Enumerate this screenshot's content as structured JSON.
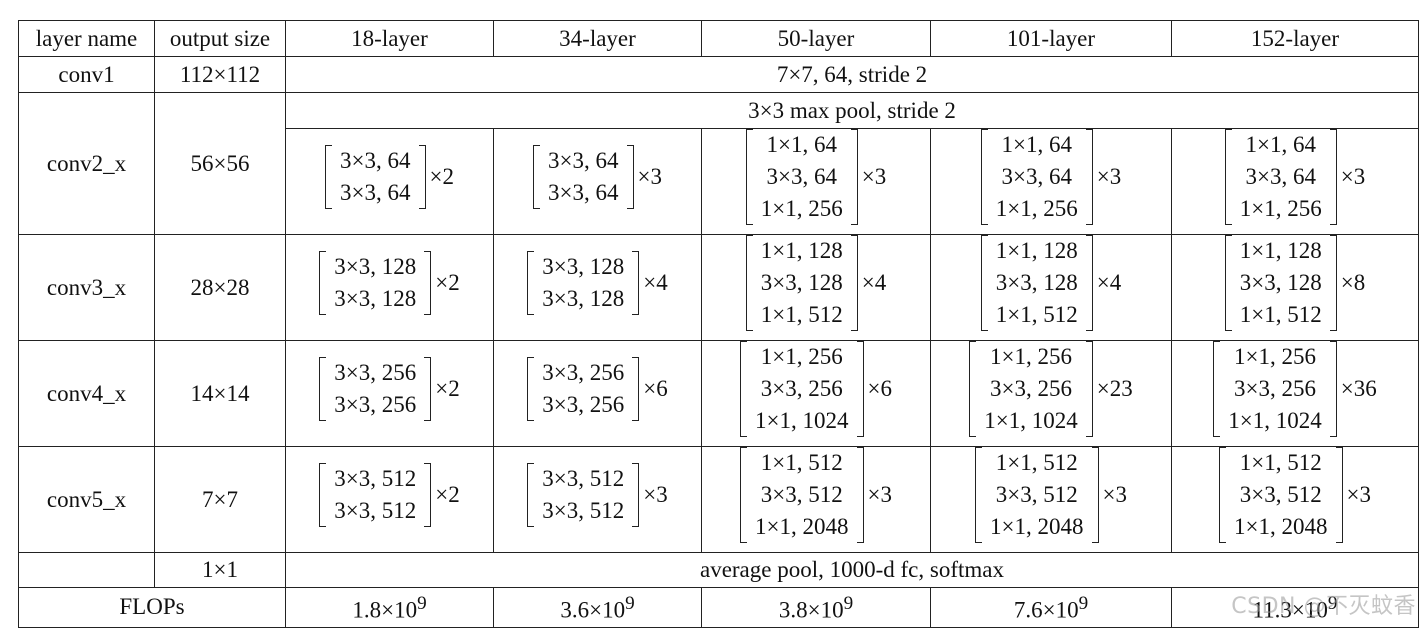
{
  "headers": [
    "layer name",
    "output size",
    "18-layer",
    "34-layer",
    "50-layer",
    "101-layer",
    "152-layer"
  ],
  "conv1": {
    "name": "conv1",
    "size": "112×112",
    "desc": "7×7, 64, stride 2"
  },
  "maxpool": {
    "desc": "3×3 max pool, stride 2"
  },
  "blocks": [
    {
      "name": "conv2_x",
      "size": "56×56",
      "cells": [
        {
          "lines": [
            "3×3, 64",
            "3×3, 64"
          ],
          "mult": "×2"
        },
        {
          "lines": [
            "3×3, 64",
            "3×3, 64"
          ],
          "mult": "×3"
        },
        {
          "lines": [
            "1×1, 64",
            "3×3, 64",
            "1×1, 256"
          ],
          "mult": "×3"
        },
        {
          "lines": [
            "1×1, 64",
            "3×3, 64",
            "1×1, 256"
          ],
          "mult": "×3"
        },
        {
          "lines": [
            "1×1, 64",
            "3×3, 64",
            "1×1, 256"
          ],
          "mult": "×3"
        }
      ]
    },
    {
      "name": "conv3_x",
      "size": "28×28",
      "cells": [
        {
          "lines": [
            "3×3, 128",
            "3×3, 128"
          ],
          "mult": "×2"
        },
        {
          "lines": [
            "3×3, 128",
            "3×3, 128"
          ],
          "mult": "×4"
        },
        {
          "lines": [
            "1×1, 128",
            "3×3, 128",
            "1×1, 512"
          ],
          "mult": "×4"
        },
        {
          "lines": [
            "1×1, 128",
            "3×3, 128",
            "1×1, 512"
          ],
          "mult": "×4"
        },
        {
          "lines": [
            "1×1, 128",
            "3×3, 128",
            "1×1, 512"
          ],
          "mult": "×8"
        }
      ]
    },
    {
      "name": "conv4_x",
      "size": "14×14",
      "cells": [
        {
          "lines": [
            "3×3, 256",
            "3×3, 256"
          ],
          "mult": "×2"
        },
        {
          "lines": [
            "3×3, 256",
            "3×3, 256"
          ],
          "mult": "×6"
        },
        {
          "lines": [
            "1×1, 256",
            "3×3, 256",
            "1×1, 1024"
          ],
          "mult": "×6"
        },
        {
          "lines": [
            "1×1, 256",
            "3×3, 256",
            "1×1, 1024"
          ],
          "mult": "×23"
        },
        {
          "lines": [
            "1×1, 256",
            "3×3, 256",
            "1×1, 1024"
          ],
          "mult": "×36"
        }
      ]
    },
    {
      "name": "conv5_x",
      "size": "7×7",
      "cells": [
        {
          "lines": [
            "3×3, 512",
            "3×3, 512"
          ],
          "mult": "×2"
        },
        {
          "lines": [
            "3×3, 512",
            "3×3, 512"
          ],
          "mult": "×3"
        },
        {
          "lines": [
            "1×1, 512",
            "3×3, 512",
            "1×1, 2048"
          ],
          "mult": "×3"
        },
        {
          "lines": [
            "1×1, 512",
            "3×3, 512",
            "1×1, 2048"
          ],
          "mult": "×3"
        },
        {
          "lines": [
            "1×1, 512",
            "3×3, 512",
            "1×1, 2048"
          ],
          "mult": "×3"
        }
      ]
    }
  ],
  "fc": {
    "size": "1×1",
    "desc": "average pool, 1000-d fc, softmax"
  },
  "flops": {
    "label": "FLOPs",
    "values": [
      {
        "mantissa": "1.8×10",
        "exp": "9"
      },
      {
        "mantissa": "3.6×10",
        "exp": "9"
      },
      {
        "mantissa": "3.8×10",
        "exp": "9"
      },
      {
        "mantissa": "7.6×10",
        "exp": "9"
      },
      {
        "mantissa": "11.3×10",
        "exp": "9"
      }
    ]
  },
  "watermark": "CSDN @不灭蚊香"
}
